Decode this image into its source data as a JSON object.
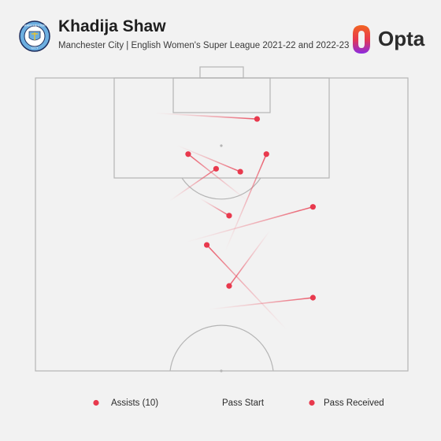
{
  "header": {
    "title": "Khadija Shaw",
    "subtitle": "Manchester City | English Women's Super League 2021-22 and 2022-23",
    "crest_text_top": "MANCHESTER",
    "crest_text_bottom": "CITY",
    "brand": "Opta"
  },
  "legend": {
    "assists_label": "Assists (10)",
    "pass_start_label": "Pass Start",
    "pass_received_label": "Pass Received"
  },
  "colors": {
    "background": "#f2f2f2",
    "pitch_lines": "#b5b5b5",
    "assist": "#e8394d",
    "pass_line": "#f0a0a8",
    "crest_blue": "#6caee0",
    "crest_navy": "#1c2c5b",
    "opta_orange": "#f26522",
    "opta_purple": "#8a2be2"
  },
  "chart_data": {
    "type": "scatter",
    "title": "Khadija Shaw",
    "subtitle": "Manchester City | English Women's Super League 2021-22 and 2022-23",
    "pitch": {
      "length": 100,
      "width": 100,
      "orientation": "vertical-half",
      "attack_direction": "up"
    },
    "assists_count": 10,
    "passes": [
      {
        "start": [
          94.0,
          32.0
        ],
        "end": [
          93.0,
          59.5
        ]
      },
      {
        "start": [
          79.0,
          57.0
        ],
        "end": [
          87.0,
          41.0
        ]
      },
      {
        "start": [
          88.5,
          38.0
        ],
        "end": [
          84.0,
          55.0
        ]
      },
      {
        "start": [
          79.0,
          36.0
        ],
        "end": [
          84.5,
          48.5
        ]
      },
      {
        "start": [
          79.5,
          44.0
        ],
        "end": [
          76.5,
          52.0
        ]
      },
      {
        "start": [
          57.0,
          67.5
        ],
        "end": [
          71.5,
          46.0
        ]
      },
      {
        "start": [
          72.0,
          40.5
        ],
        "end": [
          78.0,
          74.5
        ]
      },
      {
        "start": [
          70.5,
          51.0
        ],
        "end": [
          87.0,
          62.0
        ]
      },
      {
        "start": [
          74.0,
          63.0
        ],
        "end": [
          64.5,
          52.0
        ]
      },
      {
        "start": [
          60.5,
          46.5
        ],
        "end": [
          62.5,
          74.5
        ]
      }
    ],
    "legend": [
      "Assists (10)",
      "Pass Start",
      "Pass Received"
    ]
  }
}
